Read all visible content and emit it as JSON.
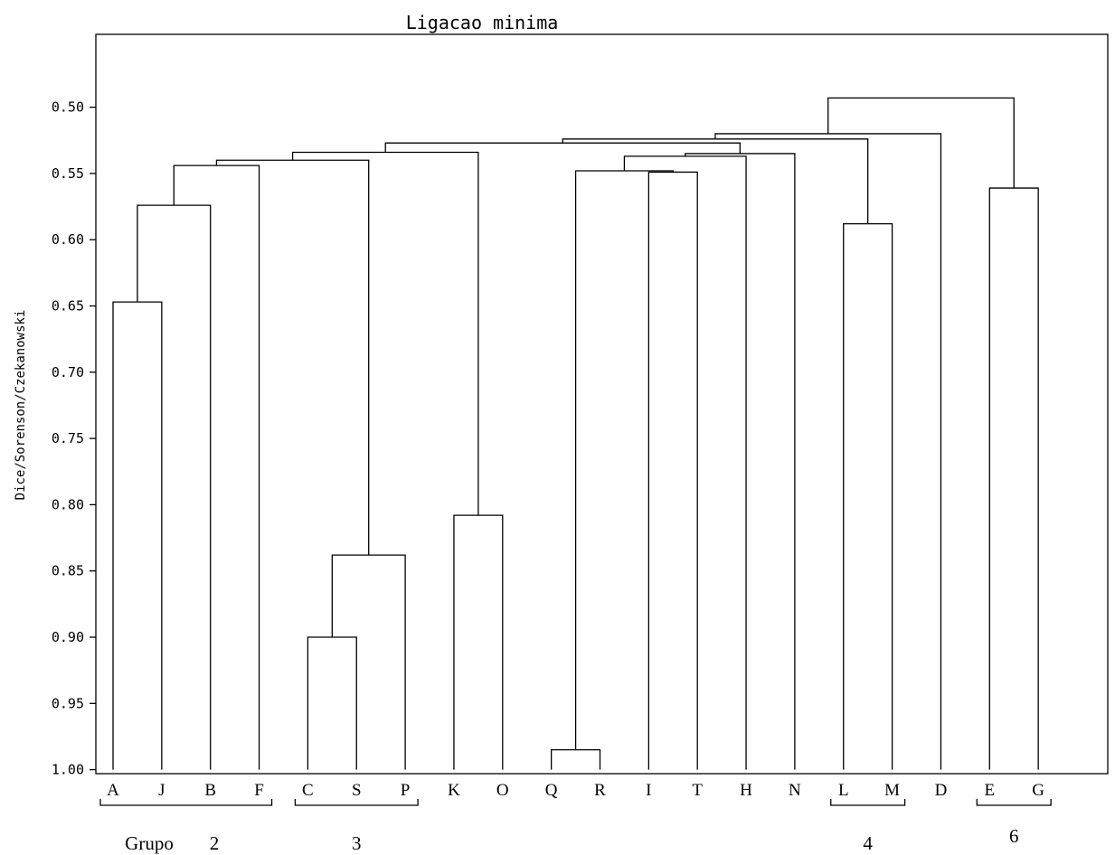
{
  "chart_data": {
    "type": "dendrogram",
    "title": "Ligacao minima",
    "ylabel": "Dice/Sorenson/Czekanowski",
    "ylim": [
      0.445,
      1.003
    ],
    "y_inverted": true,
    "yticks": [
      0.5,
      0.55,
      0.6,
      0.65,
      0.7,
      0.75,
      0.8,
      0.85,
      0.9,
      0.95,
      1.0
    ],
    "ytick_labels": [
      "0.50",
      "0.55",
      "0.60",
      "0.65",
      "0.70",
      "0.75",
      "0.80",
      "0.85",
      "0.90",
      "0.95",
      "1.00"
    ],
    "leaves": [
      "A",
      "J",
      "B",
      "F",
      "C",
      "S",
      "P",
      "K",
      "O",
      "Q",
      "R",
      "I",
      "T",
      "H",
      "N",
      "L",
      "M",
      "D",
      "E",
      "G"
    ],
    "merges": [
      {
        "left": "Q",
        "right": "R",
        "height": 0.985
      },
      {
        "left": "C",
        "right": "S",
        "height": 0.9
      },
      {
        "left": "CS",
        "right": "P",
        "height": 0.838
      },
      {
        "left": "K",
        "right": "O",
        "height": 0.808
      },
      {
        "left": "A",
        "right": "J",
        "height": 0.647
      },
      {
        "left": "L",
        "right": "M",
        "height": 0.588
      },
      {
        "left": "AJ",
        "right": "B",
        "height": 0.574
      },
      {
        "left": "E",
        "right": "G",
        "height": 0.561
      },
      {
        "left": "I",
        "right": "T",
        "height": 0.549
      },
      {
        "left": "QR",
        "right": "IT",
        "height": 0.548
      },
      {
        "left": "AJB",
        "right": "F",
        "height": 0.544
      },
      {
        "left": "AJBF",
        "right": "CSP",
        "height": 0.54
      },
      {
        "left": "QRIT",
        "right": "H",
        "height": 0.537
      },
      {
        "left": "QRITH",
        "right": "N",
        "height": 0.535
      },
      {
        "left": "AJBFCSP",
        "right": "KO",
        "height": 0.534
      },
      {
        "left": "AJBFCSPKO",
        "right": "QRITHN",
        "height": 0.527
      },
      {
        "left": "AJBFCSPKOQRITHN",
        "right": "LM",
        "height": 0.524
      },
      {
        "left": "AJBFCSPKOQRITHNLM",
        "right": "D",
        "height": 0.52
      },
      {
        "left": "AJBFCSPKOQRITHNLMD",
        "right": "EG",
        "height": 0.493
      }
    ],
    "annotations": [
      {
        "text": "Grupo",
        "group_leaves": [
          "A",
          "J",
          "B",
          "F"
        ]
      },
      {
        "text": "2",
        "group_leaves": [
          "A",
          "J",
          "B",
          "F"
        ]
      },
      {
        "text": "3",
        "group_leaves": [
          "C",
          "S",
          "P"
        ]
      },
      {
        "text": "4",
        "group_leaves": [
          "L",
          "M"
        ]
      },
      {
        "text": "6",
        "group_leaves": [
          "E",
          "G"
        ]
      }
    ],
    "grid": false,
    "legend": "none",
    "colors": {
      "line": "#000000",
      "background": "#ffffff"
    }
  }
}
